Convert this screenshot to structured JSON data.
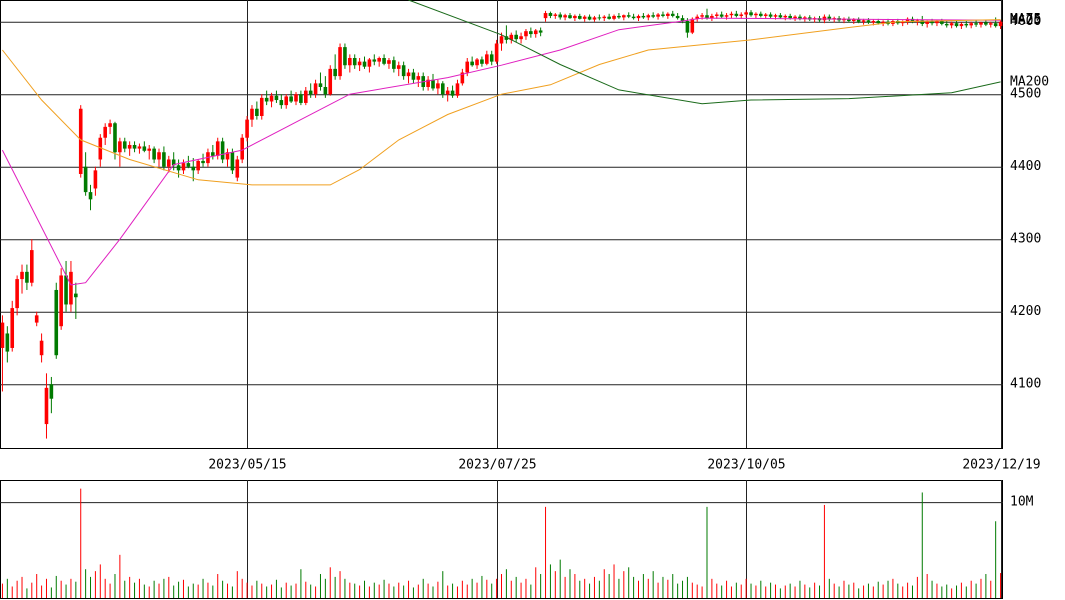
{
  "chart_data": {
    "type": "candlestick",
    "xlim": [
      -0.5,
      204.5
    ],
    "xticks": [
      {
        "value": 50,
        "label": "2023/05/15"
      },
      {
        "value": 101,
        "label": "2023/07/25"
      },
      {
        "value": 152,
        "label": "2023/10/05"
      },
      {
        "value": 204,
        "label": "2023/12/19"
      }
    ],
    "ylim": [
      4012,
      4630
    ],
    "yticks": [
      4100,
      4200,
      4300,
      4400,
      4500,
      4600
    ],
    "grid": true,
    "up_color": "#ff0000",
    "down_color": "#007a00",
    "ohlc": [
      [
        4150,
        4195,
        4090,
        4185
      ],
      [
        4170,
        4180,
        4130,
        4145
      ],
      [
        4150,
        4215,
        4145,
        4205
      ],
      [
        4205,
        4250,
        4195,
        4245
      ],
      [
        4245,
        4265,
        4225,
        4255
      ],
      [
        4255,
        4265,
        4230,
        4240
      ],
      [
        4240,
        4300,
        4235,
        4285
      ],
      [
        4185,
        4200,
        4180,
        4195
      ],
      [
        4140,
        4170,
        4130,
        4160
      ],
      [
        4045,
        4115,
        4025,
        4095
      ],
      [
        4100,
        4110,
        4060,
        4080
      ],
      [
        4230,
        4240,
        4135,
        4140
      ],
      [
        4180,
        4260,
        4175,
        4250
      ],
      [
        4250,
        4270,
        4200,
        4210
      ],
      [
        4210,
        4270,
        4200,
        4255
      ],
      [
        4225,
        4240,
        4190,
        4220
      ],
      [
        4390,
        4485,
        4385,
        4480
      ],
      [
        4400,
        4420,
        4360,
        4365
      ],
      [
        4365,
        4375,
        4340,
        4355
      ],
      [
        4370,
        4400,
        4360,
        4395
      ],
      [
        4410,
        4445,
        4400,
        4440
      ],
      [
        4440,
        4460,
        4430,
        4455
      ],
      [
        4455,
        4465,
        4445,
        4460
      ],
      [
        4460,
        4462,
        4410,
        4420
      ],
      [
        4420,
        4440,
        4400,
        4435
      ],
      [
        4435,
        4440,
        4420,
        4425
      ],
      [
        4425,
        4435,
        4415,
        4430
      ],
      [
        4430,
        4435,
        4420,
        4425
      ],
      [
        4425,
        4432,
        4418,
        4428
      ],
      [
        4428,
        4435,
        4420,
        4422
      ],
      [
        4422,
        4430,
        4410,
        4425
      ],
      [
        4425,
        4428,
        4405,
        4410
      ],
      [
        4410,
        4425,
        4400,
        4420
      ],
      [
        4420,
        4428,
        4395,
        4400
      ],
      [
        4400,
        4415,
        4392,
        4410
      ],
      [
        4410,
        4420,
        4395,
        4402
      ],
      [
        4402,
        4410,
        4385,
        4395
      ],
      [
        4395,
        4410,
        4390,
        4405
      ],
      [
        4405,
        4415,
        4398,
        4400
      ],
      [
        4400,
        4412,
        4380,
        4395
      ],
      [
        4395,
        4410,
        4390,
        4408
      ],
      [
        4408,
        4418,
        4400,
        4405
      ],
      [
        4405,
        4425,
        4400,
        4420
      ],
      [
        4420,
        4430,
        4410,
        4415
      ],
      [
        4415,
        4440,
        4410,
        4435
      ],
      [
        4435,
        4440,
        4405,
        4410
      ],
      [
        4410,
        4425,
        4400,
        4420
      ],
      [
        4420,
        4425,
        4390,
        4395
      ],
      [
        4385,
        4415,
        4380,
        4410
      ],
      [
        4410,
        4445,
        4405,
        4440
      ],
      [
        4440,
        4470,
        4435,
        4465
      ],
      [
        4465,
        4485,
        4455,
        4480
      ],
      [
        4480,
        4490,
        4465,
        4470
      ],
      [
        4470,
        4500,
        4465,
        4495
      ],
      [
        4495,
        4505,
        4485,
        4490
      ],
      [
        4490,
        4502,
        4482,
        4498
      ],
      [
        4498,
        4505,
        4488,
        4492
      ],
      [
        4492,
        4500,
        4480,
        4485
      ],
      [
        4485,
        4500,
        4480,
        4497
      ],
      [
        4497,
        4505,
        4488,
        4490
      ],
      [
        4490,
        4503,
        4485,
        4500
      ],
      [
        4500,
        4505,
        4485,
        4488
      ],
      [
        4488,
        4510,
        4485,
        4505
      ],
      [
        4505,
        4515,
        4495,
        4500
      ],
      [
        4500,
        4520,
        4495,
        4515
      ],
      [
        4515,
        4530,
        4505,
        4510
      ],
      [
        4510,
        4525,
        4495,
        4500
      ],
      [
        4500,
        4540,
        4498,
        4535
      ],
      [
        4535,
        4555,
        4520,
        4525
      ],
      [
        4525,
        4570,
        4520,
        4565
      ],
      [
        4565,
        4570,
        4535,
        4540
      ],
      [
        4540,
        4555,
        4530,
        4550
      ],
      [
        4550,
        4555,
        4535,
        4540
      ],
      [
        4540,
        4550,
        4532,
        4545
      ],
      [
        4545,
        4552,
        4535,
        4538
      ],
      [
        4538,
        4550,
        4530,
        4548
      ],
      [
        4548,
        4555,
        4540,
        4545
      ],
      [
        4545,
        4552,
        4538,
        4550
      ],
      [
        4550,
        4555,
        4540,
        4542
      ],
      [
        4542,
        4550,
        4535,
        4547
      ],
      [
        4547,
        4552,
        4530,
        4535
      ],
      [
        4535,
        4545,
        4525,
        4540
      ],
      [
        4540,
        4545,
        4520,
        4525
      ],
      [
        4525,
        4535,
        4515,
        4530
      ],
      [
        4530,
        4535,
        4515,
        4520
      ],
      [
        4520,
        4530,
        4510,
        4525
      ],
      [
        4525,
        4530,
        4505,
        4510
      ],
      [
        4510,
        4525,
        4505,
        4520
      ],
      [
        4520,
        4528,
        4505,
        4508
      ],
      [
        4508,
        4520,
        4500,
        4515
      ],
      [
        4515,
        4518,
        4495,
        4500
      ],
      [
        4500,
        4510,
        4490,
        4505
      ],
      [
        4505,
        4512,
        4495,
        4498
      ],
      [
        4498,
        4520,
        4495,
        4515
      ],
      [
        4515,
        4535,
        4512,
        4530
      ],
      [
        4530,
        4550,
        4525,
        4545
      ],
      [
        4545,
        4552,
        4538,
        4540
      ],
      [
        4540,
        4550,
        4535,
        4548
      ],
      [
        4548,
        4552,
        4538,
        4542
      ],
      [
        4542,
        4560,
        4540,
        4555
      ],
      [
        4555,
        4560,
        4540,
        4545
      ],
      [
        4545,
        4575,
        4542,
        4570
      ],
      [
        4570,
        4585,
        4560,
        4580
      ],
      [
        4580,
        4595,
        4570,
        4575
      ],
      [
        4575,
        4585,
        4570,
        4582
      ],
      [
        4582,
        4588,
        4572,
        4576
      ],
      [
        4576,
        4585,
        4570,
        4580
      ],
      [
        4580,
        4590,
        4575,
        4587
      ],
      [
        4587,
        4592,
        4578,
        4583
      ],
      [
        4583,
        4590,
        4578,
        4588
      ],
      [
        4588,
        4592,
        4580,
        4585
      ],
      [
        4605,
        4615,
        4600,
        4612
      ],
      [
        4612,
        4614,
        4605,
        4608
      ],
      [
        4608,
        4612,
        4604,
        4610
      ],
      [
        4610,
        4613,
        4603,
        4606
      ],
      [
        4606,
        4611,
        4602,
        4609
      ],
      [
        4609,
        4612,
        4604,
        4605
      ],
      [
        4605,
        4610,
        4601,
        4608
      ],
      [
        4608,
        4611,
        4603,
        4604
      ],
      [
        4604,
        4609,
        4600,
        4607
      ],
      [
        4607,
        4610,
        4602,
        4603
      ],
      [
        4603,
        4608,
        4600,
        4606
      ],
      [
        4606,
        4610,
        4602,
        4605
      ],
      [
        4605,
        4609,
        4601,
        4607
      ],
      [
        4607,
        4611,
        4603,
        4604
      ],
      [
        4604,
        4610,
        4602,
        4608
      ],
      [
        4608,
        4612,
        4604,
        4606
      ],
      [
        4606,
        4610,
        4602,
        4609
      ],
      [
        4609,
        4613,
        4605,
        4607
      ],
      [
        4607,
        4611,
        4603,
        4605
      ],
      [
        4605,
        4610,
        4601,
        4608
      ],
      [
        4608,
        4612,
        4604,
        4606
      ],
      [
        4606,
        4611,
        4602,
        4609
      ],
      [
        4609,
        4613,
        4605,
        4607
      ],
      [
        4607,
        4612,
        4603,
        4610
      ],
      [
        4610,
        4614,
        4606,
        4608
      ],
      [
        4608,
        4613,
        4604,
        4611
      ],
      [
        4611,
        4615,
        4606,
        4608
      ],
      [
        4608,
        4612,
        4603,
        4605
      ],
      [
        4605,
        4609,
        4598,
        4601
      ],
      [
        4601,
        4605,
        4578,
        4585
      ],
      [
        4585,
        4606,
        4583,
        4604
      ],
      [
        4604,
        4610,
        4600,
        4607
      ],
      [
        4607,
        4612,
        4603,
        4609
      ],
      [
        4609,
        4618,
        4603,
        4605
      ],
      [
        4605,
        4611,
        4601,
        4608
      ],
      [
        4608,
        4613,
        4604,
        4610
      ],
      [
        4610,
        4614,
        4605,
        4607
      ],
      [
        4607,
        4612,
        4603,
        4609
      ],
      [
        4609,
        4614,
        4605,
        4611
      ],
      [
        4611,
        4615,
        4606,
        4608
      ],
      [
        4608,
        4613,
        4604,
        4610
      ],
      [
        4610,
        4616,
        4606,
        4613
      ],
      [
        4613,
        4616,
        4607,
        4609
      ],
      [
        4609,
        4613,
        4605,
        4611
      ],
      [
        4611,
        4614,
        4606,
        4608
      ],
      [
        4608,
        4612,
        4604,
        4610
      ],
      [
        4610,
        4613,
        4605,
        4607
      ],
      [
        4607,
        4611,
        4603,
        4609
      ],
      [
        4609,
        4612,
        4604,
        4606
      ],
      [
        4606,
        4610,
        4602,
        4608
      ],
      [
        4608,
        4611,
        4603,
        4605
      ],
      [
        4605,
        4609,
        4601,
        4607
      ],
      [
        4607,
        4610,
        4602,
        4604
      ],
      [
        4604,
        4608,
        4600,
        4606
      ],
      [
        4606,
        4609,
        4601,
        4603
      ],
      [
        4603,
        4607,
        4599,
        4605
      ],
      [
        4605,
        4608,
        4600,
        4602
      ],
      [
        4602,
        4610,
        4598,
        4607
      ],
      [
        4607,
        4610,
        4601,
        4603
      ],
      [
        4603,
        4607,
        4599,
        4605
      ],
      [
        4605,
        4608,
        4600,
        4602
      ],
      [
        4602,
        4606,
        4598,
        4604
      ],
      [
        4604,
        4607,
        4599,
        4601
      ],
      [
        4601,
        4605,
        4597,
        4603
      ],
      [
        4603,
        4606,
        4598,
        4600
      ],
      [
        4600,
        4604,
        4596,
        4602
      ],
      [
        4602,
        4605,
        4597,
        4599
      ],
      [
        4599,
        4603,
        4595,
        4601
      ],
      [
        4601,
        4604,
        4596,
        4598
      ],
      [
        4598,
        4602,
        4594,
        4600
      ],
      [
        4600,
        4604,
        4595,
        4597
      ],
      [
        4597,
        4603,
        4594,
        4601
      ],
      [
        4601,
        4604,
        4596,
        4598
      ],
      [
        4598,
        4602,
        4594,
        4600
      ],
      [
        4600,
        4606,
        4596,
        4604
      ],
      [
        4604,
        4607,
        4598,
        4600
      ],
      [
        4600,
        4604,
        4595,
        4602
      ],
      [
        4602,
        4608,
        4594,
        4597
      ],
      [
        4597,
        4602,
        4592,
        4600
      ],
      [
        4600,
        4604,
        4595,
        4598
      ],
      [
        4598,
        4603,
        4594,
        4601
      ],
      [
        4601,
        4604,
        4595,
        4597
      ],
      [
        4597,
        4601,
        4592,
        4595
      ],
      [
        4595,
        4600,
        4591,
        4598
      ],
      [
        4598,
        4601,
        4592,
        4594
      ],
      [
        4594,
        4599,
        4590,
        4597
      ],
      [
        4597,
        4601,
        4592,
        4595
      ],
      [
        4595,
        4600,
        4591,
        4598
      ],
      [
        4598,
        4602,
        4593,
        4596
      ],
      [
        4596,
        4600,
        4592,
        4599
      ],
      [
        4599,
        4603,
        4594,
        4596
      ],
      [
        4596,
        4600,
        4592,
        4598
      ],
      [
        4598,
        4606,
        4592,
        4594
      ],
      [
        4594,
        4602,
        4590,
        4600
      ]
    ],
    "ma": [
      {
        "name": "MA25",
        "color": "#e020c0",
        "x": [
          0,
          14,
          17,
          24,
          35,
          49,
          61,
          71,
          91,
          102,
          114,
          126,
          138,
          143,
          204
        ],
        "values": [
          4423,
          4237,
          4240,
          4300,
          4403,
          4423,
          4465,
          4500,
          4523,
          4540,
          4561,
          4589,
          4600,
          4605,
          4602
        ]
      },
      {
        "name": "MA75",
        "color": "#f0a020",
        "x": [
          0,
          8,
          16,
          26,
          40,
          51,
          67,
          73,
          81,
          91,
          102,
          112,
          122,
          132,
          153,
          173,
          183,
          204
        ],
        "values": [
          4561,
          4492,
          4437,
          4410,
          4382,
          4375,
          4375,
          4396,
          4437,
          4472,
          4500,
          4513,
          4541,
          4561,
          4575,
          4592,
          4600,
          4603
        ]
      },
      {
        "name": "MA200",
        "color": "#1a6a1a",
        "x": [
          83,
          102,
          114,
          126,
          143,
          153,
          173,
          194,
          204
        ],
        "values": [
          4630,
          4582,
          4541,
          4506,
          4487,
          4492,
          4494,
          4502,
          4517
        ]
      }
    ],
    "volume": [
      1.5,
      2.0,
      1.2,
      1.8,
      2.2,
      1.0,
      1.6,
      2.5,
      1.3,
      2.0,
      1.1,
      2.3,
      1.8,
      1.4,
      2.0,
      1.7,
      11.4,
      3.0,
      2.2,
      2.8,
      3.5,
      2.0,
      1.5,
      2.5,
      4.5,
      1.8,
      2.2,
      1.6,
      2.0,
      1.4,
      1.2,
      1.8,
      1.5,
      2.0,
      2.2,
      1.3,
      1.7,
      1.9,
      1.2,
      1.5,
      1.4,
      2.0,
      1.6,
      1.3,
      2.5,
      1.8,
      1.5,
      1.2,
      2.8,
      2.0,
      1.6,
      1.3,
      1.8,
      1.5,
      1.2,
      1.4,
      1.9,
      1.1,
      1.6,
      1.3,
      1.5,
      3.0,
      1.7,
      1.4,
      1.2,
      2.5,
      2.0,
      3.2,
      2.2,
      2.8,
      2.0,
      1.6,
      1.5,
      1.3,
      1.8,
      1.2,
      1.6,
      1.4,
      1.9,
      1.5,
      1.2,
      1.6,
      1.3,
      1.8,
      1.1,
      1.4,
      2.0,
      1.5,
      1.2,
      1.7,
      2.8,
      1.3,
      1.5,
      1.2,
      1.8,
      1.4,
      2.0,
      1.6,
      2.3,
      1.9,
      1.5,
      2.0,
      2.5,
      3.0,
      1.8,
      2.2,
      1.6,
      2.0,
      1.4,
      3.2,
      2.5,
      9.5,
      3.5,
      2.8,
      4.0,
      2.2,
      3.0,
      2.5,
      1.8,
      2.0,
      1.5,
      2.2,
      1.8,
      3.0,
      2.5,
      3.5,
      2.0,
      2.8,
      3.2,
      2.2,
      1.8,
      2.5,
      2.0,
      2.8,
      1.6,
      2.2,
      1.9,
      2.5,
      1.5,
      1.8,
      2.2,
      1.6,
      1.4,
      1.2,
      9.5,
      2.0,
      1.5,
      1.3,
      1.8,
      1.2,
      1.6,
      1.4,
      2.0,
      1.5,
      1.3,
      1.8,
      1.2,
      1.6,
      1.4,
      1.0,
      1.3,
      1.5,
      1.2,
      1.8,
      1.4,
      1.1,
      1.6,
      1.3,
      9.7,
      2.0,
      1.5,
      1.2,
      1.8,
      1.4,
      1.6,
      1.0,
      1.3,
      1.5,
      1.2,
      1.7,
      1.4,
      1.8,
      2.0,
      1.5,
      1.2,
      1.6,
      1.3,
      2.2,
      11.0,
      2.5,
      1.8,
      1.5,
      1.2,
      1.4,
      1.0,
      1.3,
      1.6,
      1.2,
      1.8,
      1.5,
      2.0,
      2.5,
      1.8,
      8.0,
      2.6
    ],
    "volume_ylim": [
      0,
      12.3
    ],
    "volume_yticks": [
      {
        "value": 10,
        "label": "10M"
      }
    ]
  }
}
